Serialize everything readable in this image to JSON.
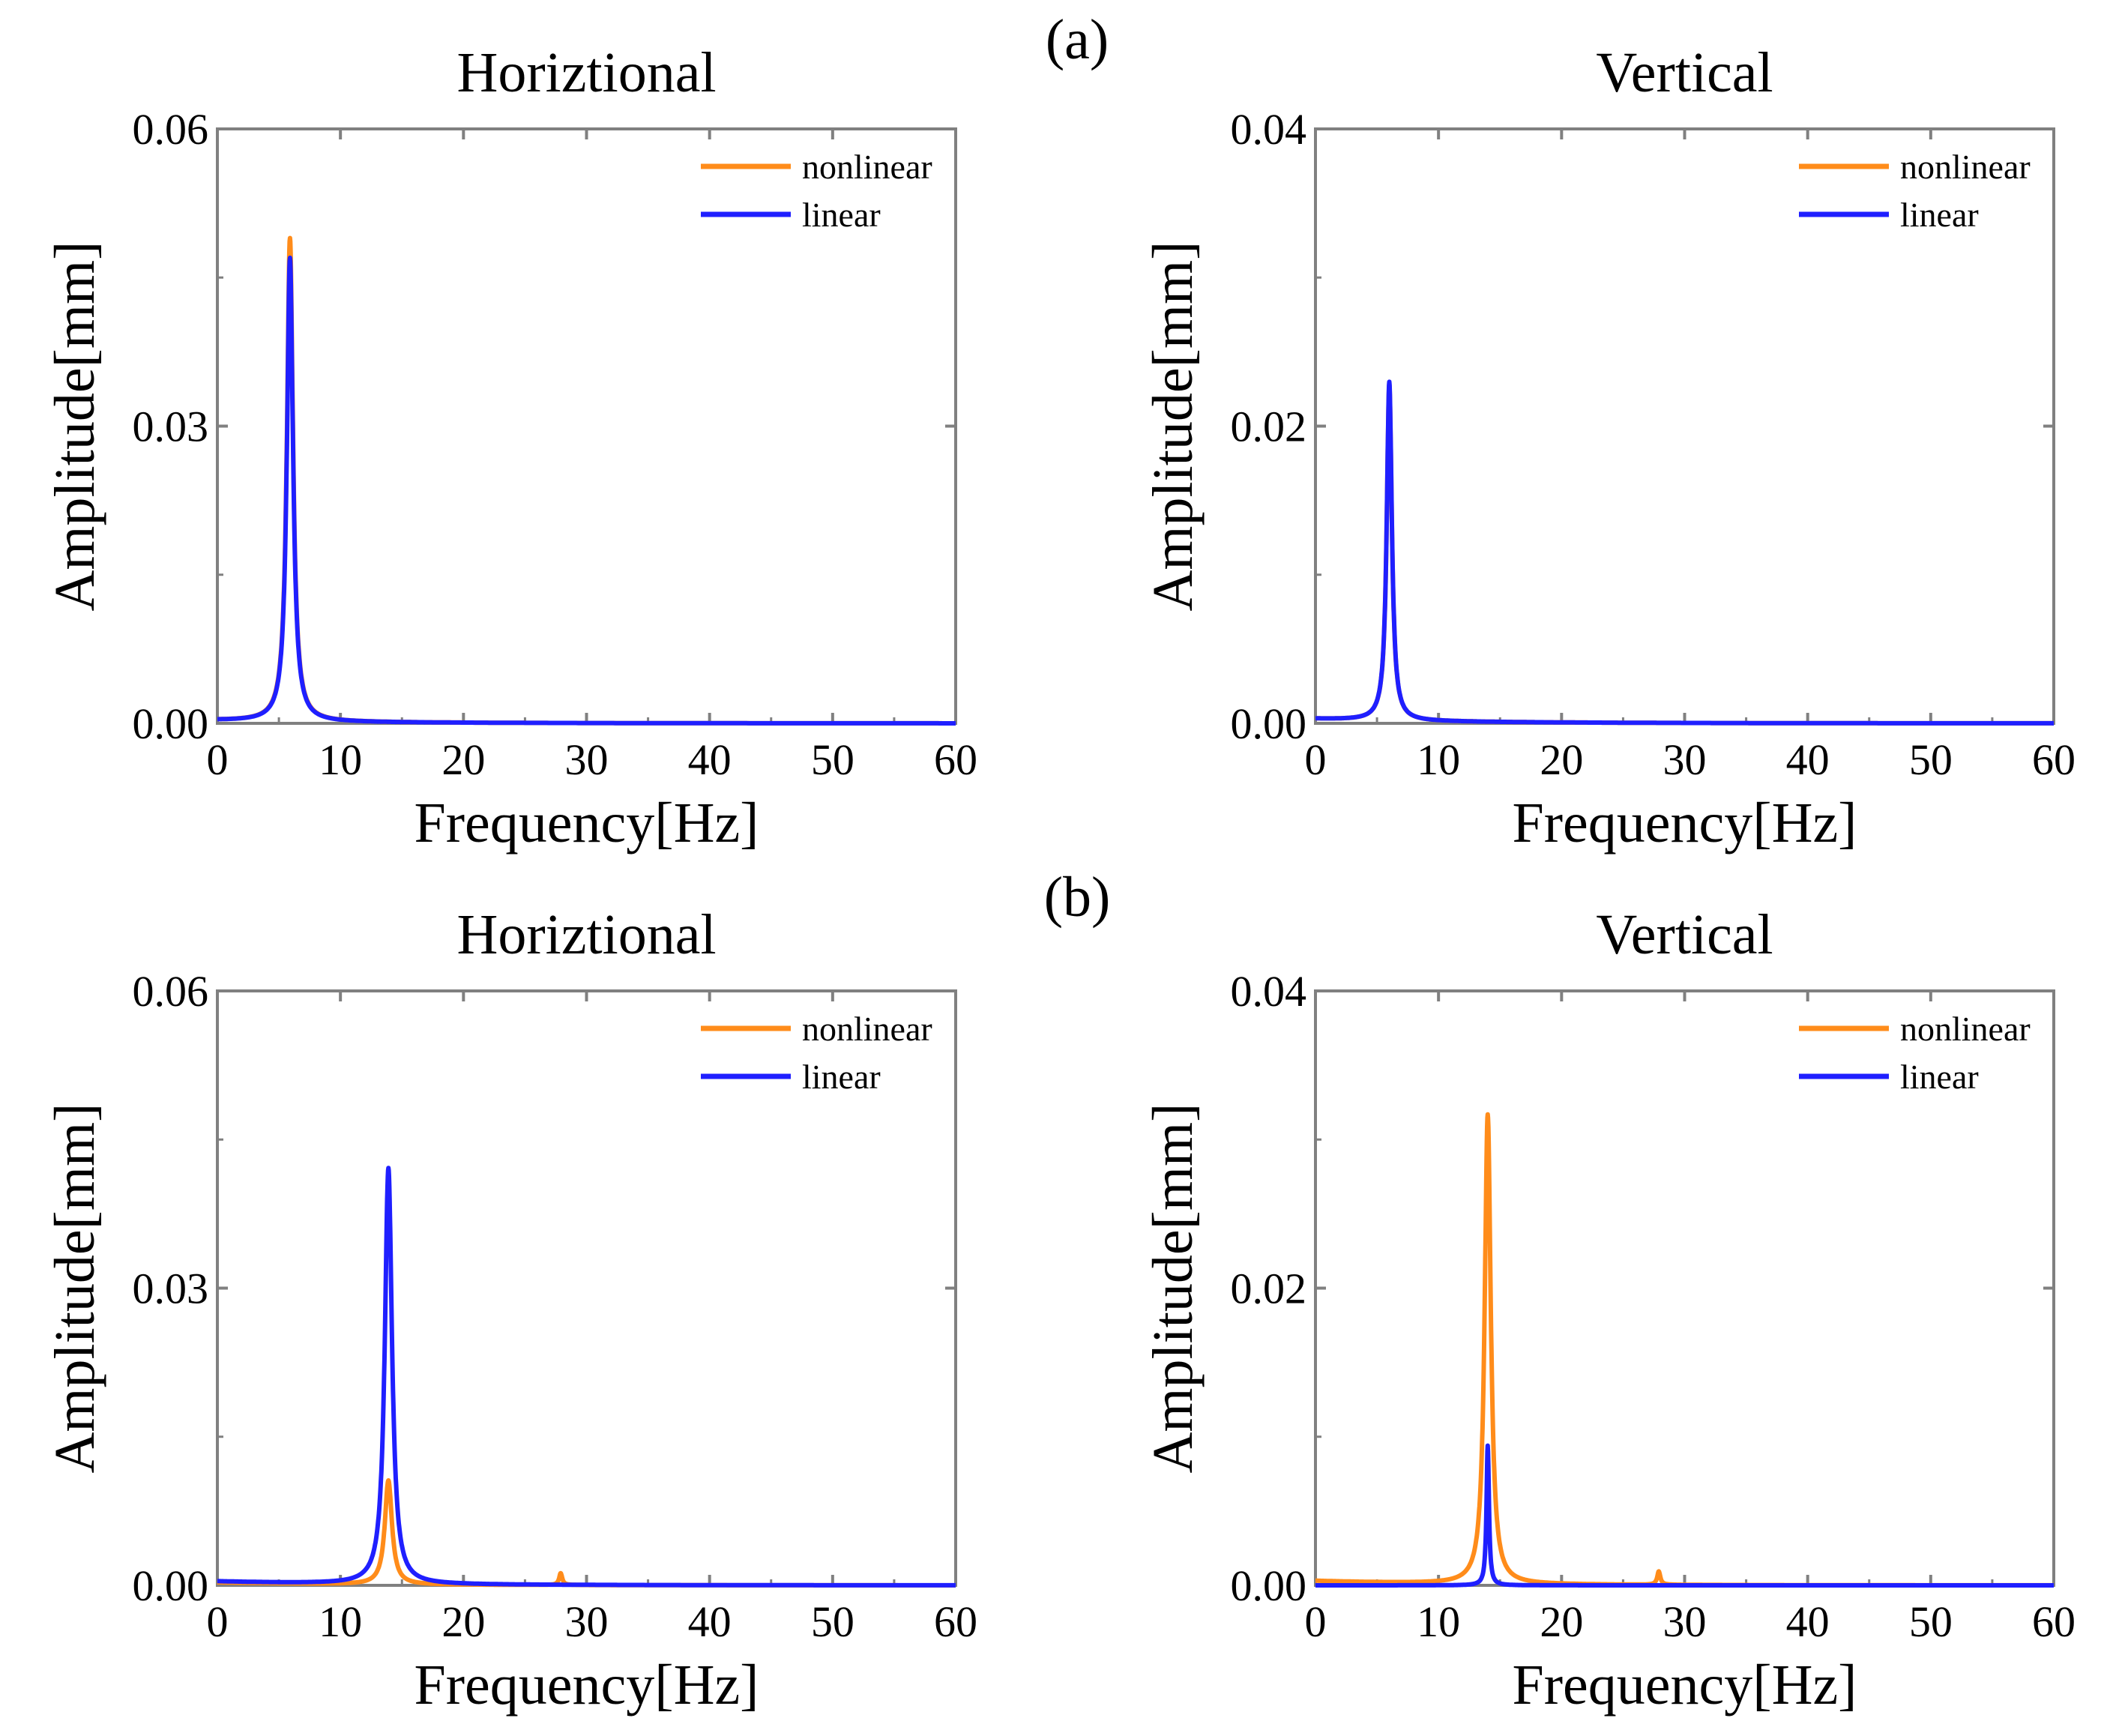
{
  "figure": {
    "panel_labels": [
      "(a)",
      "(b)"
    ]
  },
  "colors": {
    "nonlinear": "#ff8c1a",
    "linear": "#1f1fff",
    "axis": "#808080"
  },
  "chart_data": [
    {
      "id": "a-horizontal",
      "type": "line",
      "title": "Horiztional",
      "xlabel": "Frequency[Hz]",
      "ylabel": "Amplitude[mm]",
      "xlim": [
        0,
        60
      ],
      "ylim": [
        0,
        0.06
      ],
      "xticks": [
        "0",
        "10",
        "20",
        "30",
        "40",
        "50",
        "60"
      ],
      "yticks": [
        "0.00",
        "0.03",
        "0.06"
      ],
      "legend_position": "top-right",
      "series": [
        {
          "name": "nonlinear",
          "color_key": "nonlinear",
          "peaks": [
            {
              "f": 5.9,
              "amp": 0.0488,
              "width": 0.3
            }
          ],
          "base": 0.0003
        },
        {
          "name": "linear",
          "color_key": "linear",
          "peaks": [
            {
              "f": 5.9,
              "amp": 0.0468,
              "width": 0.3
            }
          ],
          "base": 0.0003
        }
      ]
    },
    {
      "id": "a-vertical",
      "type": "line",
      "title": "Vertical",
      "xlabel": "Frequency[Hz]",
      "ylabel": "Amplitude[mm]",
      "xlim": [
        0,
        60
      ],
      "ylim": [
        0,
        0.04
      ],
      "xticks": [
        "0",
        "10",
        "20",
        "30",
        "40",
        "50",
        "60"
      ],
      "yticks": [
        "0.00",
        "0.02",
        "0.04"
      ],
      "legend_position": "top-right",
      "series": [
        {
          "name": "nonlinear",
          "color_key": "nonlinear",
          "peaks": [
            {
              "f": 6.0,
              "amp": 0.0226,
              "width": 0.25
            }
          ],
          "base": 0.0003
        },
        {
          "name": "linear",
          "color_key": "linear",
          "peaks": [
            {
              "f": 6.0,
              "amp": 0.0228,
              "width": 0.25
            }
          ],
          "base": 0.0003
        }
      ]
    },
    {
      "id": "b-horizontal",
      "type": "line",
      "title": "Horiztional",
      "xlabel": "Frequency[Hz]",
      "ylabel": "Amplitude[mm]",
      "xlim": [
        0,
        60
      ],
      "ylim": [
        0,
        0.06
      ],
      "xticks": [
        "0",
        "10",
        "20",
        "30",
        "40",
        "50",
        "60"
      ],
      "yticks": [
        "0.00",
        "0.03",
        "0.06"
      ],
      "legend_position": "top-right",
      "series": [
        {
          "name": "nonlinear",
          "color_key": "nonlinear",
          "peaks": [
            {
              "f": 13.9,
              "amp": 0.0105,
              "width": 0.35
            },
            {
              "f": 27.9,
              "amp": 0.0012,
              "width": 0.15
            }
          ],
          "base": 0.0003
        },
        {
          "name": "linear",
          "color_key": "linear",
          "peaks": [
            {
              "f": 13.9,
              "amp": 0.042,
              "width": 0.35
            }
          ],
          "base": 0.0004
        }
      ]
    },
    {
      "id": "b-vertical",
      "type": "line",
      "title": "Vertical",
      "xlabel": "Frequency[Hz]",
      "ylabel": "Amplitude[mm]",
      "xlim": [
        0,
        60
      ],
      "ylim": [
        0,
        0.04
      ],
      "xticks": [
        "0",
        "10",
        "20",
        "30",
        "40",
        "50",
        "60"
      ],
      "yticks": [
        "0.00",
        "0.02",
        "0.04"
      ],
      "legend_position": "top-right",
      "series": [
        {
          "name": "nonlinear",
          "color_key": "nonlinear",
          "peaks": [
            {
              "f": 14.0,
              "amp": 0.0316,
              "width": 0.3
            },
            {
              "f": 27.9,
              "amp": 0.0009,
              "width": 0.15
            }
          ],
          "base": 0.0003
        },
        {
          "name": "linear",
          "color_key": "linear",
          "peaks": [
            {
              "f": 14.0,
              "amp": 0.0094,
              "width": 0.12
            }
          ],
          "base": 0.0
        }
      ]
    }
  ]
}
